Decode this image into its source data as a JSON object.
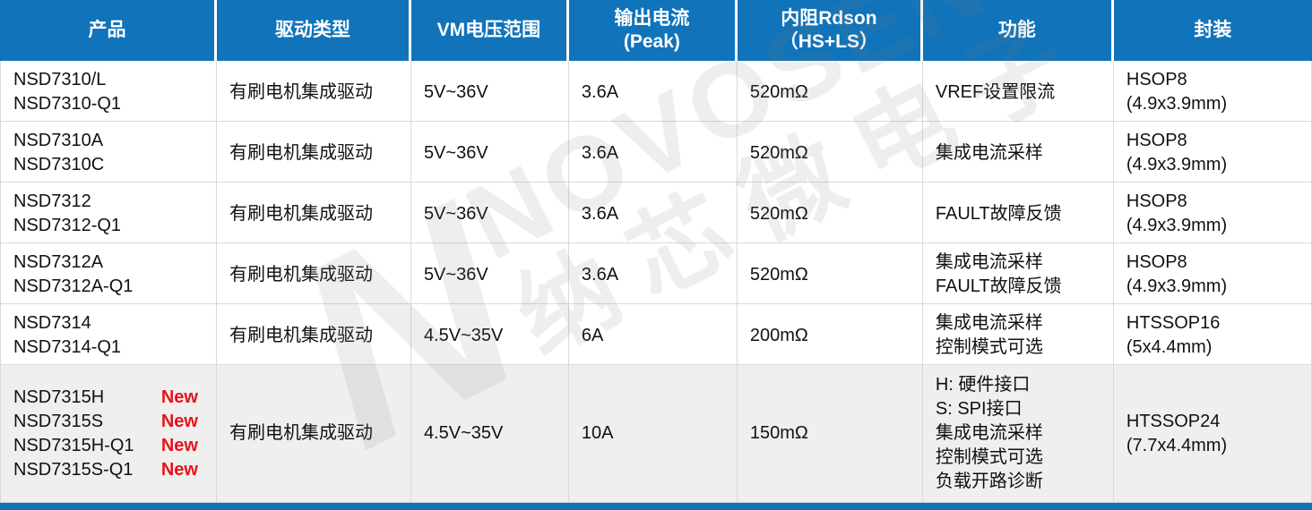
{
  "colors": {
    "header_bg": "#1173b9",
    "header_text": "#ffffff",
    "row_bg": "#ffffff",
    "highlight_row_bg": "#efefef",
    "border": "#d9d9d9",
    "text": "#111111",
    "new_badge": "#e8131b",
    "bottom_bar": "#1173b9"
  },
  "watermark": {
    "logo_letter": "N",
    "brand": "NOVOSENSE",
    "brand_cn": "纳芯微电子"
  },
  "table": {
    "columns": [
      {
        "key": "product",
        "lines": [
          "产品"
        ]
      },
      {
        "key": "drive-type",
        "lines": [
          "驱动类型"
        ]
      },
      {
        "key": "vm-range",
        "lines": [
          "VM电压范围"
        ]
      },
      {
        "key": "output-current",
        "lines": [
          "输出电流",
          "(Peak)"
        ]
      },
      {
        "key": "rdson",
        "lines": [
          "内阻Rdson",
          "（HS+LS）"
        ]
      },
      {
        "key": "function",
        "lines": [
          "功能"
        ]
      },
      {
        "key": "package",
        "lines": [
          "封装"
        ]
      }
    ],
    "rows": [
      {
        "products": [
          {
            "name": "NSD7310/L"
          },
          {
            "name": "NSD7310-Q1"
          }
        ],
        "drive_type": "有刷电机集成驱动",
        "vm_range": "5V~36V",
        "output_current": "3.6A",
        "rdson": "520mΩ",
        "functions": [
          "VREF设置限流"
        ],
        "package_lines": [
          "HSOP8",
          "(4.9x3.9mm)"
        ],
        "highlight": false
      },
      {
        "products": [
          {
            "name": "NSD7310A"
          },
          {
            "name": "NSD7310C"
          }
        ],
        "drive_type": "有刷电机集成驱动",
        "vm_range": "5V~36V",
        "output_current": "3.6A",
        "rdson": "520mΩ",
        "functions": [
          "集成电流采样"
        ],
        "package_lines": [
          "HSOP8",
          "(4.9x3.9mm)"
        ],
        "highlight": false
      },
      {
        "products": [
          {
            "name": "NSD7312"
          },
          {
            "name": "NSD7312-Q1"
          }
        ],
        "drive_type": "有刷电机集成驱动",
        "vm_range": "5V~36V",
        "output_current": "3.6A",
        "rdson": "520mΩ",
        "functions": [
          "FAULT故障反馈"
        ],
        "package_lines": [
          "HSOP8",
          "(4.9x3.9mm)"
        ],
        "highlight": false
      },
      {
        "products": [
          {
            "name": "NSD7312A"
          },
          {
            "name": "NSD7312A-Q1"
          }
        ],
        "drive_type": "有刷电机集成驱动",
        "vm_range": "5V~36V",
        "output_current": "3.6A",
        "rdson": "520mΩ",
        "functions": [
          "集成电流采样",
          "FAULT故障反馈"
        ],
        "package_lines": [
          "HSOP8",
          "(4.9x3.9mm)"
        ],
        "highlight": false
      },
      {
        "products": [
          {
            "name": "NSD7314"
          },
          {
            "name": "NSD7314-Q1"
          }
        ],
        "drive_type": "有刷电机集成驱动",
        "vm_range": "4.5V~35V",
        "output_current": "6A",
        "rdson": "200mΩ",
        "functions": [
          "集成电流采样",
          "控制模式可选"
        ],
        "package_lines": [
          "HTSSOP16",
          "(5x4.4mm)"
        ],
        "highlight": false
      },
      {
        "products": [
          {
            "name": "NSD7315H",
            "badge": "New"
          },
          {
            "name": "NSD7315S",
            "badge": "New"
          },
          {
            "name": "NSD7315H-Q1",
            "badge": "New"
          },
          {
            "name": "NSD7315S-Q1",
            "badge": "New"
          }
        ],
        "drive_type": "有刷电机集成驱动",
        "vm_range": "4.5V~35V",
        "output_current": "10A",
        "rdson": "150mΩ",
        "functions": [
          "H: 硬件接口",
          "S: SPI接口",
          "集成电流采样",
          "控制模式可选",
          "负载开路诊断"
        ],
        "package_lines": [
          "HTSSOP24",
          "(7.7x4.4mm)"
        ],
        "highlight": true
      }
    ]
  }
}
